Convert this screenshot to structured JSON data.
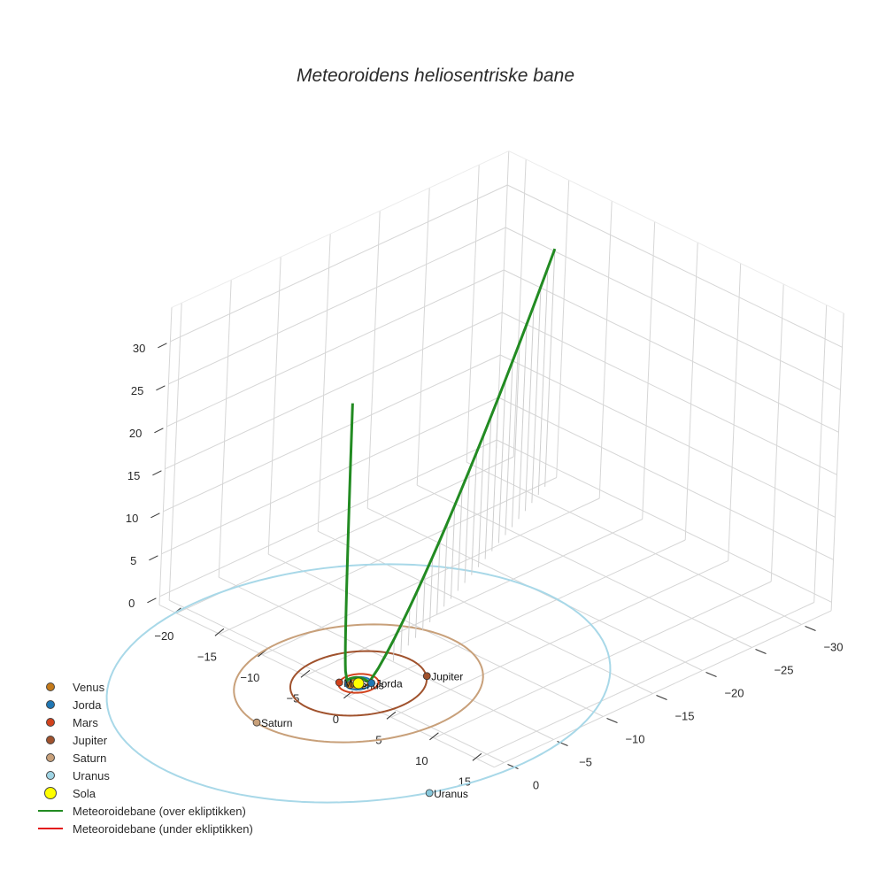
{
  "title": "Meteoroidens heliosentriske bane",
  "chart_data": {
    "type": "scatter3d",
    "title": "Meteoroidens heliosentriske bane",
    "axes": {
      "x": {
        "range": [
          -22,
          17
        ],
        "ticks": [
          -20,
          -15,
          -10,
          -5,
          0,
          5,
          10,
          15
        ]
      },
      "y": {
        "range": [
          -33,
          1
        ],
        "ticks": [
          -30,
          -25,
          -20,
          -15,
          -10,
          -5,
          0
        ]
      },
      "z": {
        "range": [
          -1,
          34
        ],
        "ticks": [
          0,
          5,
          10,
          15,
          20,
          25,
          30
        ]
      }
    },
    "orbits": [
      {
        "name": "Venus",
        "radius": 0.72,
        "color": "#c47a1a"
      },
      {
        "name": "Jorda",
        "radius": 1.0,
        "color": "#1f77b4"
      },
      {
        "name": "Mars",
        "radius": 1.52,
        "color": "#d2421c"
      },
      {
        "name": "Jupiter",
        "radius": 5.2,
        "color": "#a0522d"
      },
      {
        "name": "Saturn",
        "radius": 9.5,
        "color": "#c8a07a"
      },
      {
        "name": "Uranus",
        "radius": 19.2,
        "color": "#a8d8e8"
      }
    ],
    "planets": [
      {
        "name": "Venus",
        "x": -0.3,
        "y": 0.6,
        "z": 0,
        "color": "#c47a1a"
      },
      {
        "name": "Jorda",
        "x": 0.7,
        "y": -0.7,
        "z": 0,
        "color": "#1f77b4"
      },
      {
        "name": "Mars",
        "x": -1.2,
        "y": 0.9,
        "z": 0,
        "color": "#d2421c"
      },
      {
        "name": "Jupiter",
        "x": 3.0,
        "y": -4.3,
        "z": 0,
        "color": "#a0522d"
      },
      {
        "name": "Saturn",
        "x": -1.0,
        "y": 9.4,
        "z": 0,
        "color": "#c8a07a"
      },
      {
        "name": "Uranus",
        "x": 17.5,
        "y": 8.0,
        "z": 0,
        "color": "#87c8dc"
      },
      {
        "name": "Sola",
        "x": 0,
        "y": 0,
        "z": 0,
        "color": "#ffff00"
      }
    ],
    "series": [
      {
        "name": "Meteoroidebane (over ekliptikken)",
        "color": "#228b22",
        "description": "Trajectory rising from ~(0.5,-0.5,0) to two branches: one near (-3,-1,31) nearly vertical, one to (-14,-30,28)"
      },
      {
        "name": "Meteoroidebane (under ekliptikken)",
        "color": "#e31a1c"
      }
    ]
  },
  "legend": {
    "items": [
      {
        "label": "Venus",
        "type": "dot",
        "color": "#c47a1a",
        "size": 10
      },
      {
        "label": "Jorda",
        "type": "dot",
        "color": "#1f77b4",
        "size": 10
      },
      {
        "label": "Mars",
        "type": "dot",
        "color": "#d2421c",
        "size": 10
      },
      {
        "label": "Jupiter",
        "type": "dot",
        "color": "#a0522d",
        "size": 10
      },
      {
        "label": "Saturn",
        "type": "dot",
        "color": "#c8a07a",
        "size": 10
      },
      {
        "label": "Uranus",
        "type": "dot",
        "color": "#9fd4e4",
        "size": 10
      },
      {
        "label": "Sola",
        "type": "dot",
        "color": "#ffff00",
        "size": 14
      },
      {
        "label": "Meteoroidebane (over ekliptikken)",
        "type": "line",
        "color": "#228b22"
      },
      {
        "label": "Meteoroidebane (under ekliptikken)",
        "type": "line",
        "color": "#e31a1c"
      }
    ]
  }
}
